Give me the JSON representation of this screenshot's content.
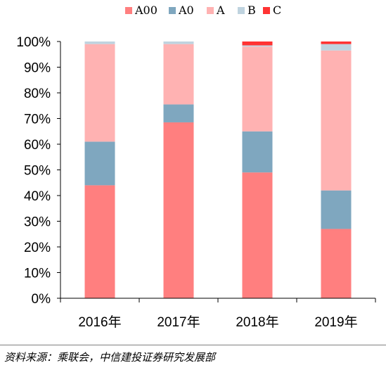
{
  "chart_data": {
    "type": "bar",
    "stacked": true,
    "normalized": true,
    "categories": [
      "2016年",
      "2017年",
      "2018年",
      "2019年"
    ],
    "series": [
      {
        "name": "A00",
        "color": "#ff7f7f",
        "values": [
          44,
          68.5,
          49,
          27
        ]
      },
      {
        "name": "A0",
        "color": "#7fa7bf",
        "values": [
          17,
          7,
          16,
          15
        ]
      },
      {
        "name": "A",
        "color": "#ffb2b2",
        "values": [
          38,
          23.5,
          33,
          54.5
        ]
      },
      {
        "name": "B",
        "color": "#bfd3df",
        "values": [
          1,
          1,
          0.5,
          2.5
        ]
      },
      {
        "name": "C",
        "color": "#ff3333",
        "values": [
          0,
          0,
          1.5,
          1
        ]
      }
    ],
    "ylim": [
      0,
      100
    ],
    "yticks": [
      "0%",
      "10%",
      "20%",
      "30%",
      "40%",
      "50%",
      "60%",
      "70%",
      "80%",
      "90%",
      "100%"
    ],
    "legend_position": "top",
    "grid": false
  },
  "source_text": "资料来源：乘联会，中信建投证券研究发展部"
}
